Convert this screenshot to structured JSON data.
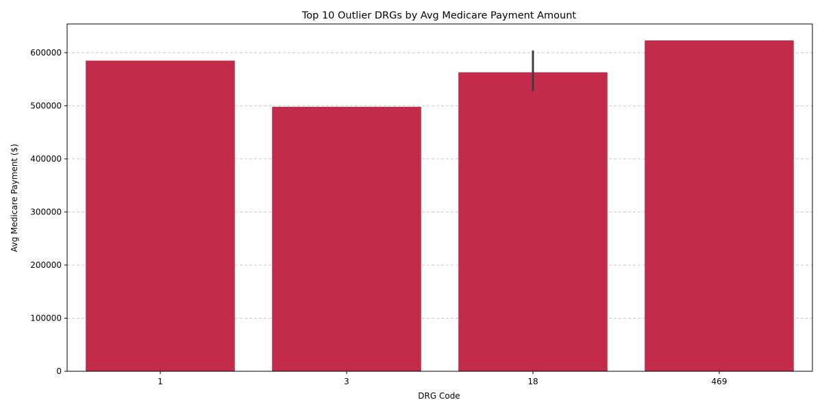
{
  "chart_data": {
    "type": "bar",
    "title": "Top 10 Outlier DRGs by Avg Medicare Payment Amount",
    "xlabel": "DRG Code",
    "ylabel": "Avg Medicare Payment ($)",
    "categories": [
      "1",
      "3",
      "18",
      "469"
    ],
    "values": [
      585000,
      498000,
      563000,
      623000
    ],
    "error_bars": [
      null,
      null,
      [
        527000,
        604000
      ],
      null
    ],
    "ylim": [
      0,
      654000
    ],
    "yticks": [
      0,
      100000,
      200000,
      300000,
      400000,
      500000,
      600000
    ],
    "grid": "y-dashed",
    "bar_color": "#c22b4a",
    "error_color": "#3d3d3d"
  }
}
